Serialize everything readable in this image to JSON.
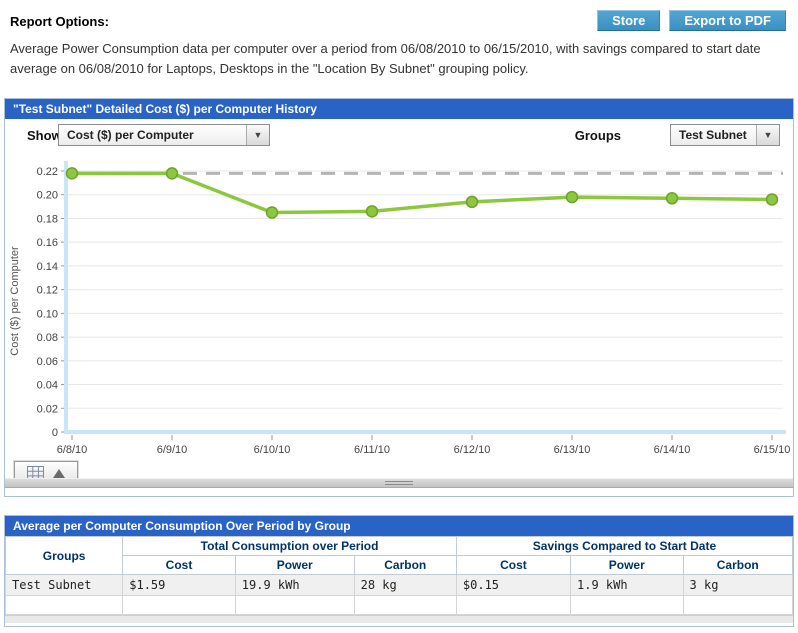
{
  "page": {
    "title": "Report Options:",
    "description": "Average Power Consumption data per computer over a period from 06/08/2010 to 06/15/2010, with savings compared to start date average on 06/08/2010 for Laptops, Desktops in the \"Location By Subnet\" grouping policy."
  },
  "toolbar": {
    "store_label": "Store",
    "export_pdf_label": "Export to PDF",
    "button_color": "#3f96c6"
  },
  "chart_panel": {
    "title": "\"Test Subnet\" Detailed Cost ($) per Computer History",
    "show_label": "Show",
    "show_value": "Cost ($) per Computer",
    "groups_label": "Groups",
    "groups_value": "Test Subnet",
    "header_color": "#2a63c6"
  },
  "chart_data": {
    "type": "line",
    "x": [
      "6/8/10",
      "6/9/10",
      "6/10/10",
      "6/11/10",
      "6/12/10",
      "6/13/10",
      "6/14/10",
      "6/15/10"
    ],
    "series": [
      {
        "name": "Test Subnet",
        "values": [
          0.218,
          0.218,
          0.185,
          0.186,
          0.194,
          0.198,
          0.197,
          0.196
        ]
      }
    ],
    "baseline": 0.218,
    "title": "\"Test Subnet\" Detailed Cost ($) per Computer History",
    "xlabel": "",
    "ylabel": "Cost ($) per Computer",
    "ylim": [
      0,
      0.22
    ],
    "ytick_step": 0.02,
    "grid": true,
    "legend": "none",
    "line_color": "#8dc63f",
    "marker_stroke": "#6fa22e",
    "baseline_color": "#b5b5b5",
    "axis_color": "#c9e6f7",
    "grid_color": "#e8e8e8",
    "tick_color": "#999999",
    "label_color": "#444444"
  },
  "table_panel": {
    "title": "Average per Computer Consumption Over Period by Group",
    "groups_header": "Groups",
    "group_headers": [
      "Total Consumption over Period",
      "Savings Compared to Start Date"
    ],
    "sub_headers": [
      "Cost",
      "Power",
      "Carbon",
      "Cost",
      "Power",
      "Carbon"
    ],
    "rows": [
      {
        "group": "Test Subnet",
        "total_cost": "$1.59",
        "total_power": "19.9 kWh",
        "total_carbon": "28 kg",
        "savings_cost": "$0.15",
        "savings_power": "1.9 kWh",
        "savings_carbon": "3 kg"
      }
    ],
    "savings_color": "#2e7d2e"
  }
}
